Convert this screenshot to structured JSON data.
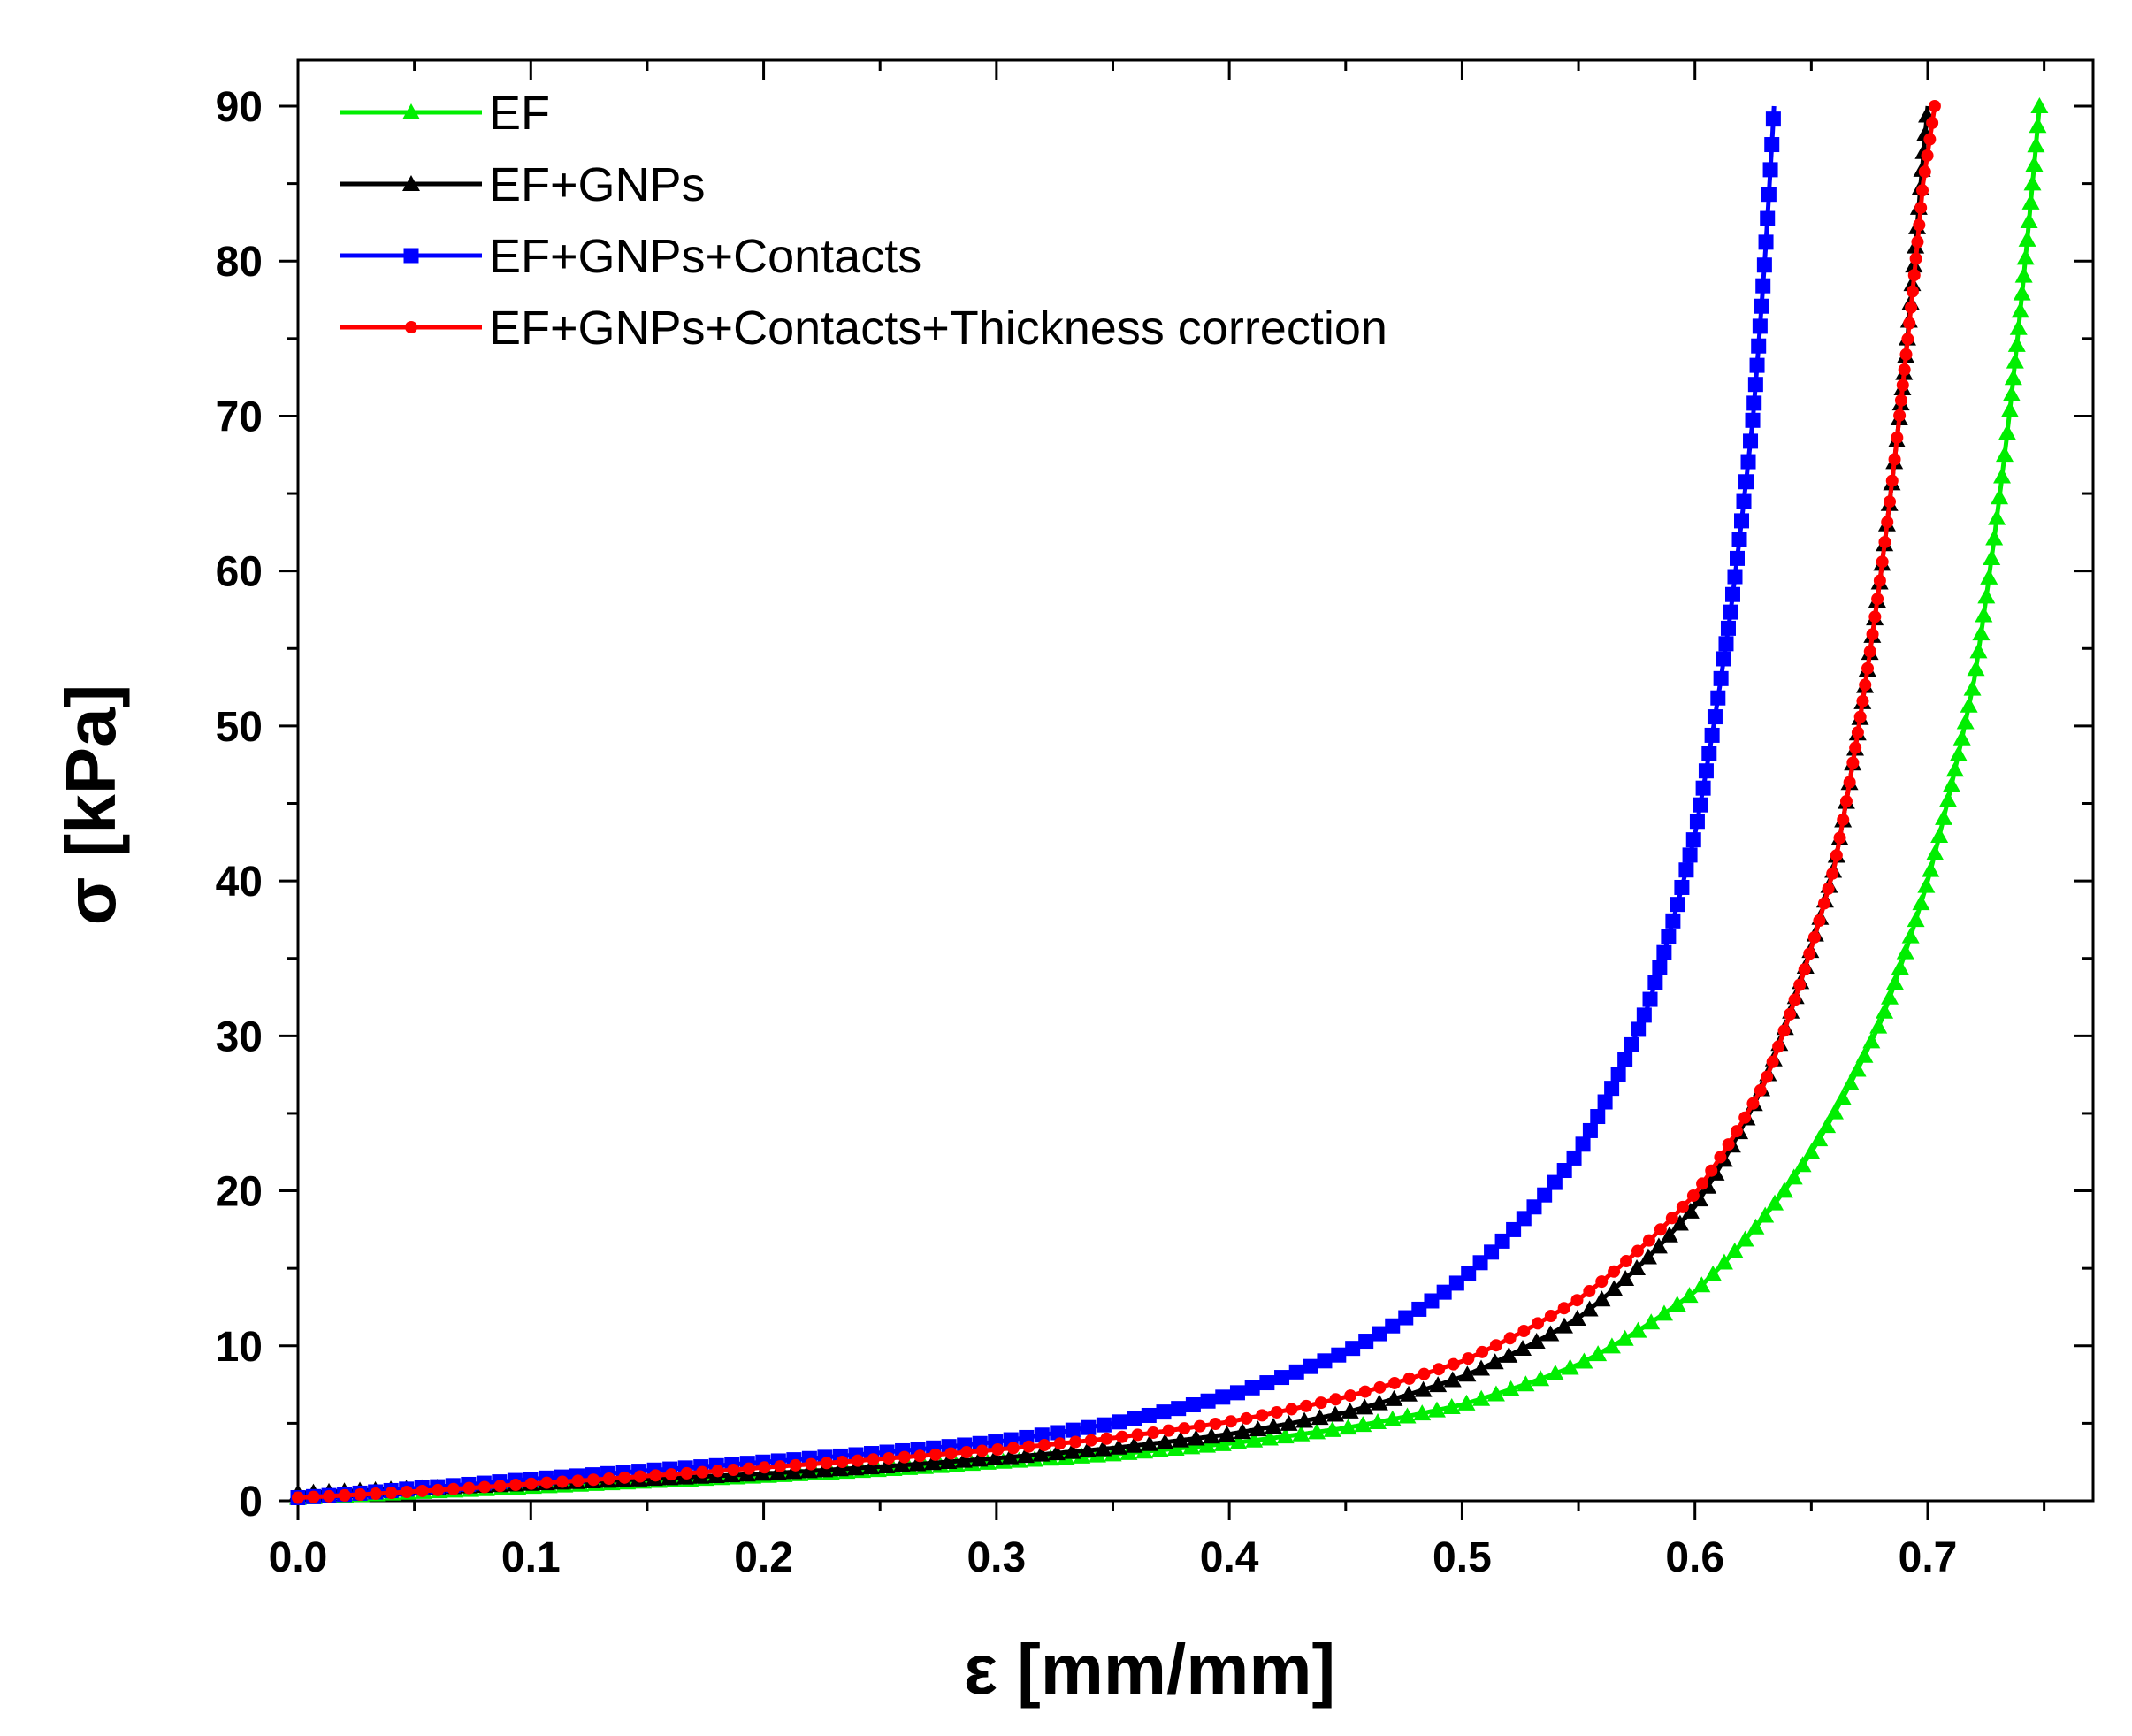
{
  "chart_data": {
    "type": "line",
    "title": "",
    "xlabel": "ε [mm/mm]",
    "ylabel": "σ [kPa]",
    "xlim": [
      0,
      0.77
    ],
    "ylim": [
      0,
      90
    ],
    "xticks": [
      0.0,
      0.1,
      0.2,
      0.3,
      0.4,
      0.5,
      0.6,
      0.7
    ],
    "xtick_labels": [
      "0.0",
      "0.1",
      "0.2",
      "0.3",
      "0.4",
      "0.5",
      "0.6",
      "0.7"
    ],
    "yticks": [
      0,
      10,
      20,
      30,
      40,
      50,
      60,
      70,
      80,
      90
    ],
    "ytick_labels": [
      "0",
      "10",
      "20",
      "30",
      "40",
      "50",
      "60",
      "70",
      "80",
      "90"
    ],
    "grid": false,
    "legend_position": "top-left",
    "series": [
      {
        "name": "EF",
        "color": "#00ee00",
        "marker": "triangle",
        "points": [
          [
            0.0,
            0.2
          ],
          [
            0.05,
            0.55
          ],
          [
            0.1,
            0.9
          ],
          [
            0.15,
            1.25
          ],
          [
            0.2,
            1.6
          ],
          [
            0.25,
            2.0
          ],
          [
            0.3,
            2.5
          ],
          [
            0.35,
            3.0
          ],
          [
            0.4,
            3.7
          ],
          [
            0.45,
            4.7
          ],
          [
            0.5,
            6.2
          ],
          [
            0.55,
            8.8
          ],
          [
            0.6,
            13.5
          ],
          [
            0.65,
            22.5
          ],
          [
            0.68,
            31
          ],
          [
            0.7,
            40
          ],
          [
            0.72,
            53
          ],
          [
            0.735,
            70
          ],
          [
            0.745,
            85
          ],
          [
            0.748,
            90
          ]
        ]
      },
      {
        "name": "EF+GNPs",
        "color": "#000000",
        "marker": "triangle",
        "points": [
          [
            0.0,
            0.5
          ],
          [
            0.05,
            0.8
          ],
          [
            0.1,
            1.1
          ],
          [
            0.15,
            1.4
          ],
          [
            0.2,
            1.75
          ],
          [
            0.25,
            2.2
          ],
          [
            0.3,
            2.75
          ],
          [
            0.35,
            3.4
          ],
          [
            0.4,
            4.3
          ],
          [
            0.45,
            5.7
          ],
          [
            0.5,
            8.0
          ],
          [
            0.55,
            11.8
          ],
          [
            0.6,
            19.0
          ],
          [
            0.63,
            27
          ],
          [
            0.66,
            41
          ],
          [
            0.68,
            60
          ],
          [
            0.69,
            73
          ],
          [
            0.697,
            85
          ],
          [
            0.7,
            90
          ]
        ]
      },
      {
        "name": "EF+GNPs+Contacts",
        "color": "#0000ff",
        "marker": "square",
        "points": [
          [
            0.0,
            0.2
          ],
          [
            0.05,
            0.8
          ],
          [
            0.1,
            1.4
          ],
          [
            0.15,
            1.95
          ],
          [
            0.2,
            2.5
          ],
          [
            0.25,
            3.1
          ],
          [
            0.3,
            3.8
          ],
          [
            0.35,
            5.0
          ],
          [
            0.4,
            6.8
          ],
          [
            0.45,
            9.6
          ],
          [
            0.5,
            14.3
          ],
          [
            0.55,
            22.5
          ],
          [
            0.58,
            32
          ],
          [
            0.6,
            43
          ],
          [
            0.615,
            57
          ],
          [
            0.625,
            70
          ],
          [
            0.63,
            80
          ],
          [
            0.634,
            90
          ]
        ]
      },
      {
        "name": "EF+GNPs+Contacts+Thickness correction",
        "color": "#ff0000",
        "marker": "circle",
        "points": [
          [
            0.0,
            0.2
          ],
          [
            0.05,
            0.6
          ],
          [
            0.1,
            1.1
          ],
          [
            0.15,
            1.6
          ],
          [
            0.2,
            2.15
          ],
          [
            0.25,
            2.7
          ],
          [
            0.3,
            3.3
          ],
          [
            0.35,
            4.05
          ],
          [
            0.4,
            5.1
          ],
          [
            0.45,
            6.7
          ],
          [
            0.5,
            9.0
          ],
          [
            0.55,
            13.0
          ],
          [
            0.6,
            19.8
          ],
          [
            0.63,
            27
          ],
          [
            0.66,
            41
          ],
          [
            0.68,
            60
          ],
          [
            0.69,
            73
          ],
          [
            0.698,
            85
          ],
          [
            0.703,
            90
          ]
        ]
      }
    ]
  }
}
